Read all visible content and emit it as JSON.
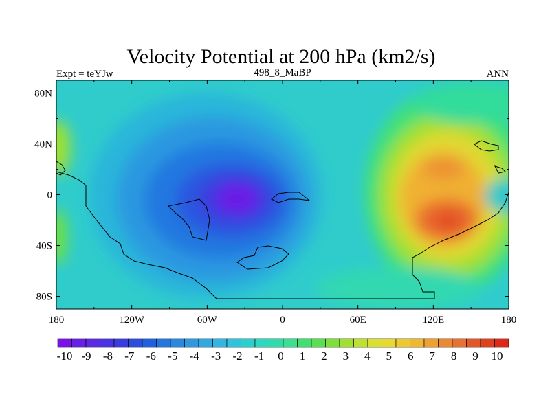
{
  "chart_data": {
    "type": "contour-map",
    "title": "Velocity Potential at 200 hPa (km2/s)",
    "left_label": "Expt = teYJw",
    "center_label": "498_8_MaBP",
    "right_label": "ANN",
    "x_ticks": [
      "180",
      "120W",
      "60W",
      "0",
      "60E",
      "120E",
      "180"
    ],
    "x_tick_values": [
      -180,
      -120,
      -60,
      0,
      60,
      120,
      180
    ],
    "y_ticks": [
      "80N",
      "40N",
      "0",
      "40S",
      "80S"
    ],
    "y_tick_values": [
      80,
      40,
      0,
      -40,
      -80
    ],
    "xlim": [
      -180,
      180
    ],
    "ylim": [
      -90,
      90
    ],
    "colorbar": {
      "labels": [
        "-10",
        "-9",
        "-8",
        "-7",
        "-6",
        "-5",
        "-4",
        "-3",
        "-2",
        "-1",
        "0",
        "1",
        "2",
        "3",
        "4",
        "5",
        "6",
        "7",
        "8",
        "9",
        "10"
      ],
      "colors": [
        "#7b10e8",
        "#6a1fe6",
        "#5b28e4",
        "#4a33e2",
        "#3a3be0",
        "#2a4ce0",
        "#2060e0",
        "#2475e0",
        "#2a88e0",
        "#2e98e0",
        "#30a8e0",
        "#30b6e0",
        "#2ec4dc",
        "#2ccfd0",
        "#2cd8c0",
        "#30dcaa",
        "#38e090",
        "#40e070",
        "#58e050",
        "#7ce038",
        "#a0e030",
        "#c0e030",
        "#d8e030",
        "#e8d830",
        "#eec830",
        "#f0b830",
        "#f0a030",
        "#ec8830",
        "#e87030",
        "#e45828",
        "#e04020",
        "#e02818"
      ]
    },
    "features": [
      {
        "name": "negative center",
        "lon": -30,
        "lat": 0,
        "value": -9.5
      },
      {
        "name": "positive center",
        "lon": 125,
        "lat": -20,
        "value": 8.5
      },
      {
        "name": "positive north max",
        "lon": 120,
        "lat": 25,
        "value": 7.5
      }
    ]
  }
}
